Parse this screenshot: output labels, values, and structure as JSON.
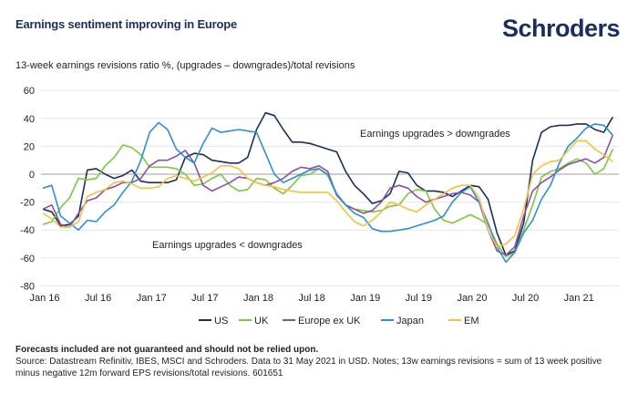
{
  "header": {
    "title": "Earnings sentiment improving in Europe",
    "logo_text": "Schroders",
    "subtitle": "13-week earnings revisions ratio %, (upgrades – downgrades)/total revisions"
  },
  "chart_data": {
    "type": "line",
    "ylim": [
      -80,
      60
    ],
    "y_ticks": [
      60,
      40,
      20,
      0,
      -20,
      -40,
      -60,
      -80
    ],
    "x_tick_labels": [
      "Jan 16",
      "Jul 16",
      "Jan 17",
      "Jul 17",
      "Jan 18",
      "Jul 18",
      "Jan 19",
      "Jul 19",
      "Jan 20",
      "Jul 20",
      "Jan 21"
    ],
    "x_tick_dates": [
      "2016-01",
      "2016-07",
      "2017-01",
      "2017-07",
      "2018-01",
      "2018-07",
      "2019-01",
      "2019-07",
      "2020-01",
      "2020-07",
      "2021-01"
    ],
    "grid": true,
    "legend_placement": "bottom",
    "x": [
      "2016-01",
      "2016-02",
      "2016-03",
      "2016-04",
      "2016-05",
      "2016-06",
      "2016-07",
      "2016-08",
      "2016-09",
      "2016-10",
      "2016-11",
      "2016-12",
      "2017-01",
      "2017-02",
      "2017-03",
      "2017-04",
      "2017-05",
      "2017-06",
      "2017-07",
      "2017-08",
      "2017-09",
      "2017-10",
      "2017-11",
      "2017-12",
      "2018-01",
      "2018-02",
      "2018-03",
      "2018-04",
      "2018-05",
      "2018-06",
      "2018-07",
      "2018-08",
      "2018-09",
      "2018-10",
      "2018-11",
      "2018-12",
      "2019-01",
      "2019-02",
      "2019-03",
      "2019-04",
      "2019-05",
      "2019-06",
      "2019-07",
      "2019-08",
      "2019-09",
      "2019-10",
      "2019-11",
      "2019-12",
      "2020-01",
      "2020-02",
      "2020-03",
      "2020-04",
      "2020-05",
      "2020-06",
      "2020-07",
      "2020-08",
      "2020-09",
      "2020-10",
      "2020-11",
      "2020-12",
      "2021-01",
      "2021-02",
      "2021-03",
      "2021-04",
      "2021-05"
    ],
    "series": [
      {
        "name": "US",
        "color": "#1b2f5e",
        "values": [
          -25,
          -27,
          -37,
          -36,
          -30,
          3,
          4,
          0,
          -3,
          -1,
          3,
          -5,
          -6,
          -6,
          -6,
          -4,
          12,
          15,
          14,
          10,
          9,
          8,
          8,
          12,
          32,
          44,
          42,
          32,
          23,
          23,
          22,
          20,
          18,
          16,
          2,
          -8,
          -14,
          -21,
          -19,
          -14,
          2,
          1,
          -8,
          -12,
          -12,
          -13,
          -16,
          -12,
          -8,
          -9,
          -18,
          -42,
          -58,
          -55,
          -35,
          10,
          30,
          34,
          35,
          35,
          36,
          36,
          32,
          30,
          41
        ]
      },
      {
        "name": "UK",
        "color": "#7ac943",
        "values": [
          -36,
          -34,
          -24,
          -17,
          -3,
          -4,
          -3,
          6,
          12,
          21,
          19,
          14,
          5,
          5,
          5,
          4,
          0,
          -8,
          -7,
          -3,
          0,
          -8,
          -12,
          -11,
          -3,
          -4,
          -10,
          -14,
          -8,
          -1,
          0,
          4,
          -1,
          -15,
          -22,
          -25,
          -26,
          -27,
          -26,
          -23,
          -22,
          -14,
          -11,
          -12,
          -25,
          -33,
          -35,
          -32,
          -29,
          -32,
          -36,
          -50,
          -59,
          -56,
          -40,
          -22,
          -2,
          2,
          4,
          8,
          11,
          8,
          0,
          4,
          18
        ]
      },
      {
        "name": "Europe ex UK",
        "color": "#8e4fa3",
        "values": [
          -25,
          -22,
          -36,
          -38,
          -28,
          -19,
          -17,
          -11,
          -9,
          -6,
          -6,
          -3,
          6,
          10,
          10,
          13,
          17,
          8,
          -8,
          -12,
          -9,
          -6,
          -2,
          -3,
          -6,
          -8,
          -6,
          -3,
          2,
          5,
          4,
          6,
          2,
          -15,
          -22,
          -25,
          -28,
          -26,
          -20,
          -10,
          -8,
          -10,
          -16,
          -20,
          -18,
          -16,
          -14,
          -13,
          -15,
          -20,
          -40,
          -55,
          -58,
          -52,
          -30,
          -12,
          -6,
          -2,
          3,
          7,
          9,
          11,
          8,
          12,
          28
        ]
      },
      {
        "name": "Japan",
        "color": "#2f8fd8",
        "values": [
          -10,
          -8,
          -30,
          -35,
          -40,
          -33,
          -34,
          -27,
          -22,
          -13,
          -5,
          10,
          30,
          37,
          32,
          18,
          12,
          8,
          22,
          33,
          30,
          31,
          32,
          31,
          30,
          15,
          0,
          -6,
          -3,
          0,
          3,
          4,
          0,
          -14,
          -22,
          -28,
          -31,
          -39,
          -41,
          -41,
          -40,
          -39,
          -37,
          -35,
          -33,
          -30,
          -20,
          -13,
          -9,
          -20,
          -35,
          -52,
          -63,
          -56,
          -42,
          -33,
          -18,
          -8,
          8,
          20,
          26,
          33,
          36,
          35,
          28
        ]
      },
      {
        "name": "EM",
        "color": "#f5c242",
        "values": [
          -28,
          -32,
          -38,
          -38,
          -34,
          -16,
          -13,
          -11,
          -6,
          -5,
          -7,
          -10,
          -10,
          -9,
          -3,
          -1,
          -3,
          -5,
          -2,
          1,
          6,
          6,
          4,
          -3,
          -6,
          -8,
          -9,
          -11,
          -12,
          -13,
          -13,
          -13,
          -13,
          -19,
          -27,
          -34,
          -37,
          -33,
          -27,
          -20,
          -22,
          -25,
          -27,
          -22,
          -18,
          -14,
          -10,
          -8,
          -8,
          -17,
          -40,
          -52,
          -50,
          -44,
          -25,
          0,
          6,
          9,
          10,
          17,
          24,
          24,
          18,
          14,
          9
        ]
      }
    ],
    "annotations": [
      "Earnings upgrades > downgrades",
      "Earnings upgrades < downgrades"
    ]
  },
  "footer": {
    "disclaimer": "Forecasts included are not guaranteed and should not be relied upon.",
    "source": "Source: Datastream Refinitiv, IBES, MSCI and Schroders. Data to 31 May 2021 in USD. Notes; 13w earnings revisions = sum of 13 week positive minus negative 12m forward EPS revisions/total revisions. 601651"
  }
}
